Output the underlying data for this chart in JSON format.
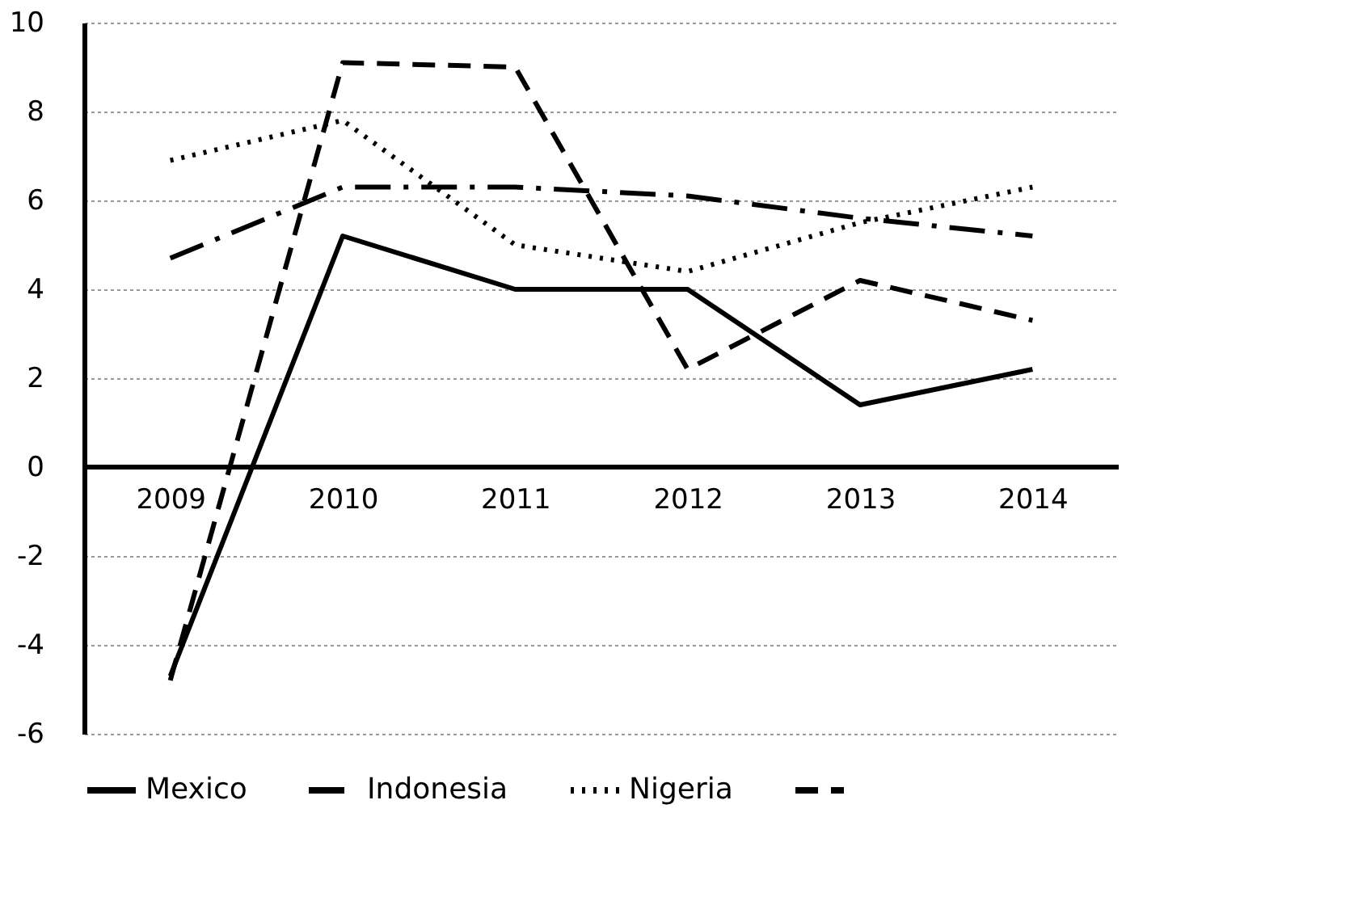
{
  "chart_data": {
    "type": "line",
    "categories": [
      "2009",
      "2010",
      "2011",
      "2012",
      "2013",
      "2014"
    ],
    "series": [
      {
        "name": "Mexico",
        "color": "#000000",
        "line_style": "solid",
        "values": [
          -4.7,
          5.2,
          4.0,
          4.0,
          1.4,
          2.2
        ]
      },
      {
        "name": "Indonesia",
        "color": "#000000",
        "line_style": "dashdot",
        "values": [
          4.7,
          6.3,
          6.3,
          6.1,
          5.6,
          5.2
        ]
      },
      {
        "name": "Nigeria",
        "color": "#000000",
        "line_style": "dotted",
        "values": [
          6.9,
          7.8,
          5.0,
          4.4,
          5.5,
          6.3
        ]
      },
      {
        "color": "#000000",
        "line_style": "dashed",
        "values": [
          -4.8,
          9.1,
          9.0,
          2.2,
          4.2,
          3.3
        ]
      }
    ],
    "ylim": [
      -6,
      10
    ],
    "yticks": [
      -6,
      -4,
      -2,
      0,
      2,
      4,
      6,
      8,
      10
    ],
    "grid": "y",
    "legend": "bottom",
    "marker": "none"
  }
}
